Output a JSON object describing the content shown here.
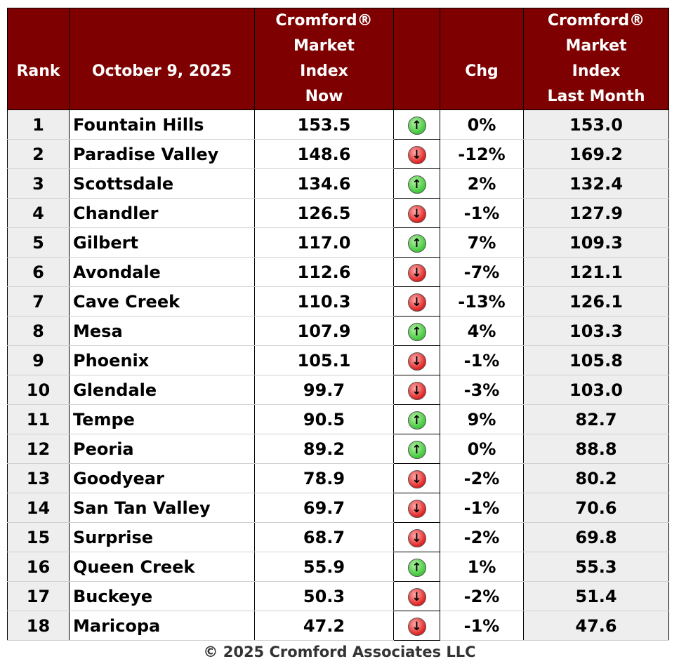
{
  "header": {
    "rank": "Rank",
    "date": "October 9, 2025",
    "now_lines": [
      "Cromford®",
      "Market",
      "Index",
      "Now"
    ],
    "chg": "Chg",
    "last_lines": [
      "Cromford®",
      "Market",
      "Index",
      "Last Month"
    ]
  },
  "rows": [
    {
      "rank": "1",
      "city": "Fountain Hills",
      "now": "153.5",
      "dir": "up",
      "chg": "0%",
      "last": "153.0"
    },
    {
      "rank": "2",
      "city": "Paradise Valley",
      "now": "148.6",
      "dir": "down",
      "chg": "-12%",
      "last": "169.2"
    },
    {
      "rank": "3",
      "city": "Scottsdale",
      "now": "134.6",
      "dir": "up",
      "chg": "2%",
      "last": "132.4"
    },
    {
      "rank": "4",
      "city": "Chandler",
      "now": "126.5",
      "dir": "down",
      "chg": "-1%",
      "last": "127.9"
    },
    {
      "rank": "5",
      "city": "Gilbert",
      "now": "117.0",
      "dir": "up",
      "chg": "7%",
      "last": "109.3"
    },
    {
      "rank": "6",
      "city": "Avondale",
      "now": "112.6",
      "dir": "down",
      "chg": "-7%",
      "last": "121.1"
    },
    {
      "rank": "7",
      "city": "Cave Creek",
      "now": "110.3",
      "dir": "down",
      "chg": "-13%",
      "last": "126.1"
    },
    {
      "rank": "8",
      "city": "Mesa",
      "now": "107.9",
      "dir": "up",
      "chg": "4%",
      "last": "103.3"
    },
    {
      "rank": "9",
      "city": "Phoenix",
      "now": "105.1",
      "dir": "down",
      "chg": "-1%",
      "last": "105.8"
    },
    {
      "rank": "10",
      "city": "Glendale",
      "now": "99.7",
      "dir": "down",
      "chg": "-3%",
      "last": "103.0"
    },
    {
      "rank": "11",
      "city": "Tempe",
      "now": "90.5",
      "dir": "up",
      "chg": "9%",
      "last": "82.7"
    },
    {
      "rank": "12",
      "city": "Peoria",
      "now": "89.2",
      "dir": "up",
      "chg": "0%",
      "last": "88.8"
    },
    {
      "rank": "13",
      "city": "Goodyear",
      "now": "78.9",
      "dir": "down",
      "chg": "-2%",
      "last": "80.2"
    },
    {
      "rank": "14",
      "city": "San Tan Valley",
      "now": "69.7",
      "dir": "down",
      "chg": "-1%",
      "last": "70.6"
    },
    {
      "rank": "15",
      "city": "Surprise",
      "now": "68.7",
      "dir": "down",
      "chg": "-2%",
      "last": "69.8"
    },
    {
      "rank": "16",
      "city": "Queen Creek",
      "now": "55.9",
      "dir": "up",
      "chg": "1%",
      "last": "55.3"
    },
    {
      "rank": "17",
      "city": "Buckeye",
      "now": "50.3",
      "dir": "down",
      "chg": "-2%",
      "last": "51.4"
    },
    {
      "rank": "18",
      "city": "Maricopa",
      "now": "47.2",
      "dir": "down",
      "chg": "-1%",
      "last": "47.6"
    }
  ],
  "footer": "© 2025 Cromford Associates LLC",
  "colors": {
    "header_bg": "#7f0000",
    "up": "#3fc83a",
    "down": "#e02020"
  }
}
